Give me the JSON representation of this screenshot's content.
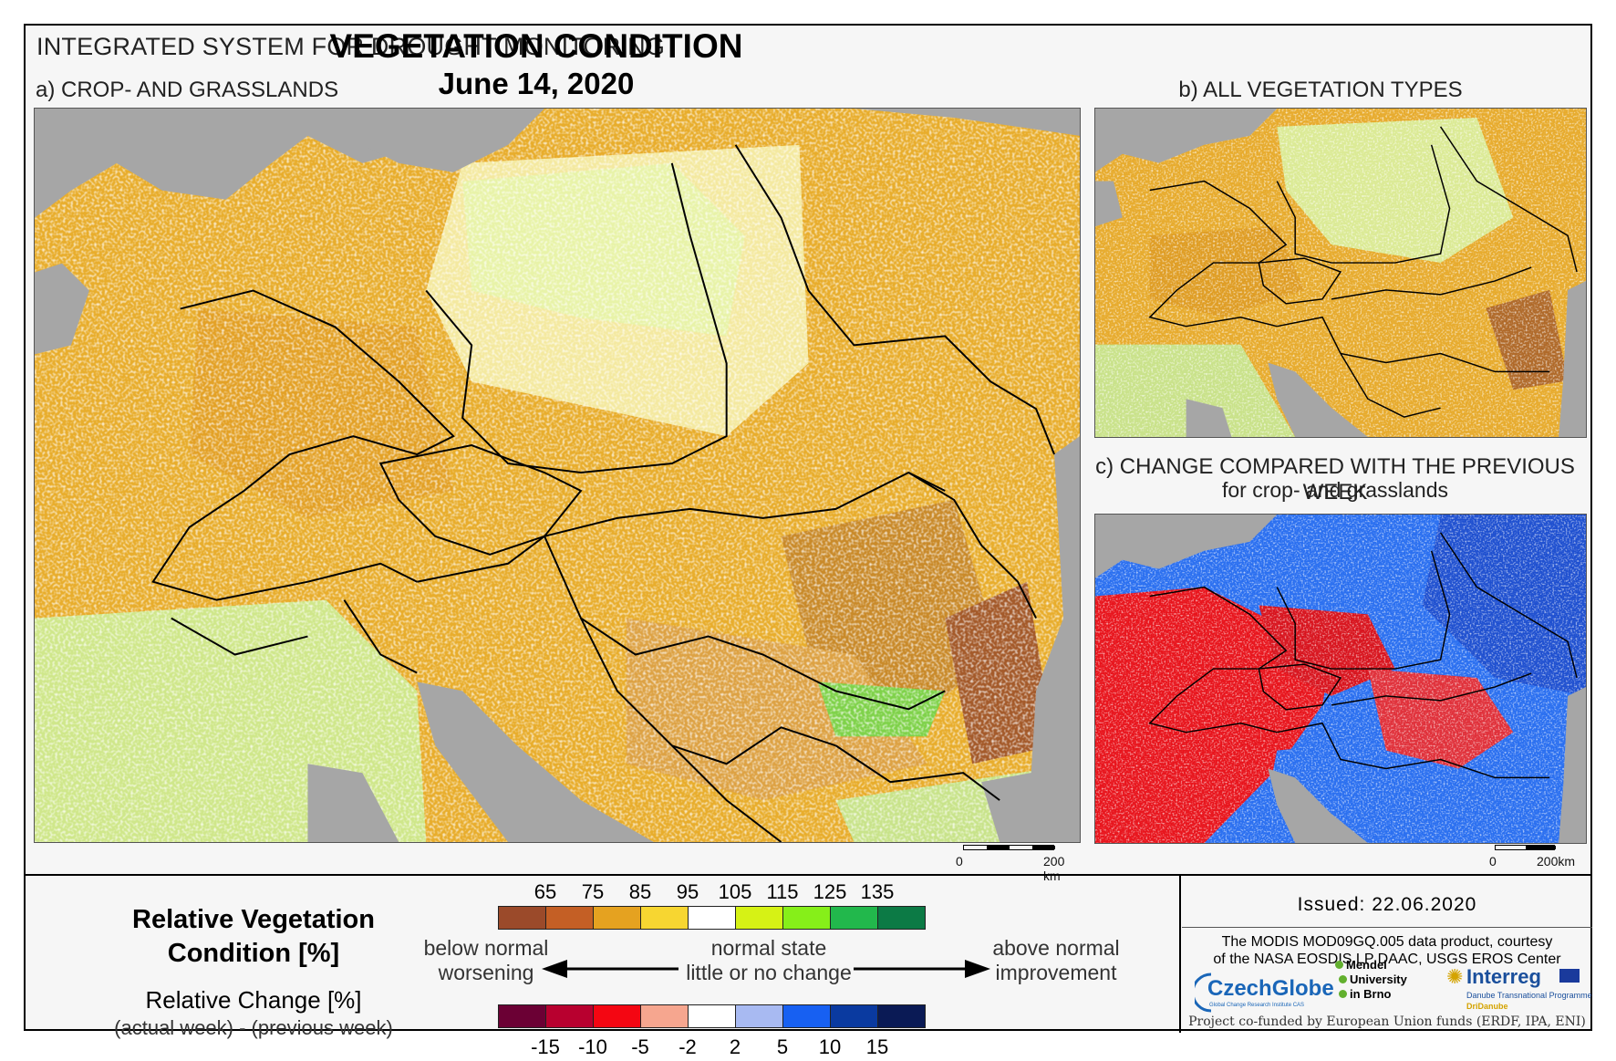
{
  "header": {
    "system": "INTEGRATED SYSTEM FOR DROUGHT MONITORING",
    "title": "VEGETATION CONDITION",
    "date": "June 14, 2020"
  },
  "panels": {
    "a": {
      "label": "a) CROP- AND GRASSLANDS",
      "scale_zero": "0",
      "scale_end": "200 km"
    },
    "b": {
      "label": "b) ALL VEGETATION TYPES"
    },
    "c": {
      "label": "c) CHANGE COMPARED WITH THE PREVIOUS WEEK",
      "sublabel": "for crop- and grasslands",
      "scale_zero": "0",
      "scale_end": "200km"
    }
  },
  "legend": {
    "rvc_title_1": "Relative Vegetation",
    "rvc_title_2": "Condition [%]",
    "rc_title": "Relative Change [%]",
    "rc_sub": "(actual week) - (previous week)",
    "rvc_ticks": [
      "65",
      "75",
      "85",
      "95",
      "105",
      "115",
      "125",
      "135"
    ],
    "rvc_colors": [
      "#9b4a2a",
      "#c45f25",
      "#e5a220",
      "#f7d631",
      "#ffffff",
      "#d6f215",
      "#86ef19",
      "#22b84c",
      "#0c7a45"
    ],
    "rc_ticks": [
      "-15",
      "-10",
      "-5",
      "-2",
      "2",
      "5",
      "10",
      "15"
    ],
    "rc_colors": [
      "#6b0034",
      "#b8002f",
      "#f40612",
      "#f6a68f",
      "#ffffff",
      "#a8baf2",
      "#1760f2",
      "#0a3aa0",
      "#0a1a55"
    ],
    "left_desc_1": "below normal",
    "left_desc_2": "worsening",
    "center_desc_1": "normal state",
    "center_desc_2": "little or no change",
    "right_desc_1": "above normal",
    "right_desc_2": "improvement"
  },
  "footer": {
    "issued": "Issued: 22.06.2020",
    "credit_1": "The MODIS MOD09GQ.005 data product, courtesy",
    "credit_2": "of the NASA EOSDIS LP DAAC, USGS EROS Center",
    "czechglobe": "CzechGlobe",
    "czechglobe_sub": "Global Change Research Institute CAS",
    "mendel_1": "Mendel",
    "mendel_2": "University",
    "mendel_3": "in Brno",
    "interreg": "Interreg",
    "interreg_sub": "Danube Transnational Programme",
    "dridanube": "DriDanube",
    "funded": "Project co-funded by European Union funds (ERDF, IPA, ENI)"
  }
}
